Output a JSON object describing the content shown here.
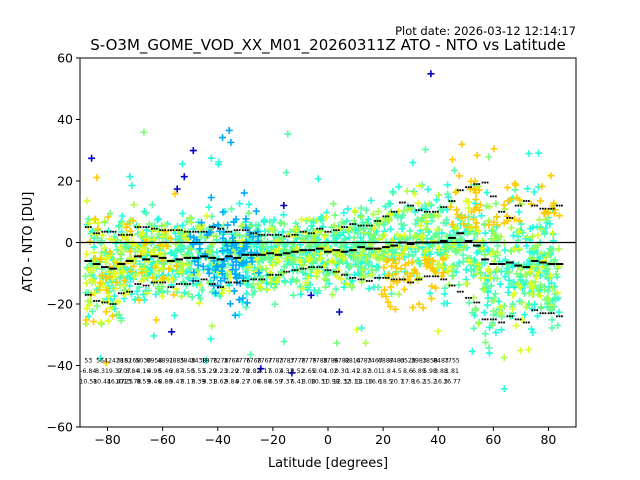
{
  "chart_data": {
    "type": "scatter",
    "plot_date": "Plot date: 2026-03-12 12:14:17",
    "title": "S-O3M_GOME_VOD_XX_M01_20260311Z ATO - NTO vs Latitude",
    "xlabel": "Latitude [degrees]",
    "ylabel": "ATO - NTO [DU]",
    "xlim": [
      -90,
      90
    ],
    "ylim": [
      -60,
      60
    ],
    "xticks": [
      -80,
      -60,
      -40,
      -20,
      0,
      20,
      40,
      60,
      80
    ],
    "yticks": [
      -60,
      -40,
      -20,
      0,
      20,
      40,
      60
    ],
    "grid": false,
    "zero_line": 0,
    "colors": [
      "#0000cc",
      "#00aaff",
      "#22ffdd",
      "#55ffaa",
      "#77ff77",
      "#aaff44",
      "#ddff22",
      "#ffcc00"
    ],
    "bin_lat": [
      -87,
      -84,
      -81,
      -78,
      -75,
      -72,
      -69,
      -66,
      -63,
      -60,
      -57,
      -54,
      -51,
      -48,
      -45,
      -42,
      -39,
      -36,
      -33,
      -30,
      -27,
      -24,
      -21,
      -18,
      -15,
      -12,
      -9,
      -6,
      -3,
      0,
      3,
      6,
      9,
      12,
      15,
      18,
      21,
      24,
      27,
      30,
      33,
      36,
      39,
      42,
      45,
      48,
      51,
      54,
      57,
      60,
      63,
      66,
      69,
      72,
      75,
      78,
      81,
      84
    ],
    "mean": [
      -6,
      -7,
      -8,
      -8.5,
      -7,
      -6,
      -4.5,
      -5.5,
      -4.5,
      -5,
      -6,
      -5.5,
      -5,
      -5,
      -4.5,
      -5,
      -5.5,
      -4.5,
      -5,
      -4,
      -4,
      -4,
      -3.5,
      -4,
      -3.5,
      -3,
      -2.5,
      -2.5,
      -2,
      -3,
      -2.5,
      -3,
      -2.5,
      -1.5,
      -2,
      -2,
      -1.5,
      -1,
      0,
      -0.5,
      0,
      0,
      0,
      0.5,
      1.5,
      3,
      0.5,
      -1,
      -5.5,
      -7,
      -7,
      -6.5,
      -7.5,
      -8,
      -6,
      -6.5,
      -7,
      -7
    ],
    "upper": [
      5,
      3,
      3.5,
      3.5,
      2.5,
      2.5,
      5,
      5,
      4.5,
      4,
      4,
      4,
      3.5,
      3.5,
      3.5,
      5,
      4.5,
      3.5,
      4,
      4,
      3,
      2.5,
      2.5,
      2.5,
      2,
      2.5,
      3.5,
      3,
      4.5,
      3.5,
      4,
      5,
      6,
      5.5,
      5.5,
      7,
      8.5,
      10,
      13,
      12,
      10.5,
      10,
      10,
      11.5,
      13.5,
      17,
      18,
      19,
      19.5,
      15,
      10,
      8,
      12,
      13.5,
      12,
      11,
      11,
      12
    ],
    "lower": [
      -17,
      -19,
      -19.5,
      -20,
      -16.5,
      -16,
      -13.5,
      -14,
      -13,
      -13,
      -14.5,
      -13.5,
      -13.5,
      -12.5,
      -12,
      -13.5,
      -14.5,
      -13,
      -13,
      -12.5,
      -12,
      -12,
      -10.5,
      -10.5,
      -9.5,
      -9,
      -8.5,
      -8,
      -8,
      -9,
      -9.5,
      -10.5,
      -11.5,
      -12,
      -12.5,
      -11.5,
      -11.5,
      -12,
      -12,
      -13,
      -12,
      -11,
      -11,
      -12,
      -14,
      -16,
      -18,
      -19.5,
      -25,
      -25,
      -26,
      -24,
      -25,
      -26,
      -22,
      -23,
      -23,
      -24
    ],
    "spread": [
      15,
      14,
      14,
      13,
      12,
      12,
      12,
      11,
      11,
      11,
      11,
      11,
      11,
      11,
      11,
      11,
      12,
      12,
      12,
      12,
      11,
      11,
      10,
      10,
      9,
      9,
      9,
      9,
      10,
      10,
      10,
      10,
      10,
      10,
      10,
      10,
      14,
      15,
      14,
      14,
      14,
      13,
      13,
      13,
      15,
      16,
      18,
      22,
      22,
      22,
      20,
      20,
      20,
      19,
      18,
      18,
      18,
      18
    ],
    "stats_row1": [
      "53",
      "564",
      "2428",
      "3182",
      "5168",
      "5030",
      "8958",
      "4891",
      "7885",
      "3848",
      "3438",
      "1878",
      "7278",
      "3764",
      "7776",
      "7768",
      "7767",
      "7783",
      "7787",
      "3778",
      "7779",
      "7788",
      "3786",
      "9782",
      "8814",
      "6783",
      "7467",
      "6887",
      "8483",
      "6528",
      "3983",
      "1858",
      "8483",
      "7755"
    ],
    "stats_row2": [
      "-6.84",
      "8.31",
      "9.37",
      "9.07",
      "8.84",
      "4.16",
      "4.98",
      "5.46",
      "3.87",
      "4.50",
      "5.53",
      "5.29",
      "3.23",
      "3.29",
      "2.78",
      "2.82",
      "2.17",
      "5.03",
      "4.32",
      "3.52",
      "2.65",
      "0.04",
      "1.02",
      "0.30",
      "1.41",
      "2.87",
      "3.01",
      "1.8",
      "4.5",
      "8.6",
      "6.89",
      "5.98",
      "3.88",
      "1.81"
    ],
    "stats_row3": [
      "10.58",
      "10.44",
      "16.47",
      "10.25",
      "13.78",
      "8.59",
      "9.46",
      "8.80",
      "9.47",
      "8.17",
      "8.39",
      "9.31",
      "8.62",
      "9.84",
      "9.27",
      "7.06",
      "6.80",
      "6.59",
      "7.37",
      "6.41",
      "8.08",
      "10.31",
      "10.98",
      "12.32",
      "13.11",
      "14.10",
      "16.6",
      "18.5",
      "20.7",
      "17.8",
      "16.2",
      "15.2",
      "16.3",
      "16.77"
    ],
    "stats_lat": [
      -87,
      -82,
      -77,
      -74,
      -71,
      -67,
      -63,
      -59,
      -55,
      -51,
      -47,
      -43,
      -39,
      -35,
      -31,
      -27,
      -23,
      -19,
      -15,
      -11,
      -7,
      -3,
      1,
      5,
      9,
      13,
      17,
      21,
      25,
      29,
      33,
      37,
      41,
      45
    ]
  }
}
